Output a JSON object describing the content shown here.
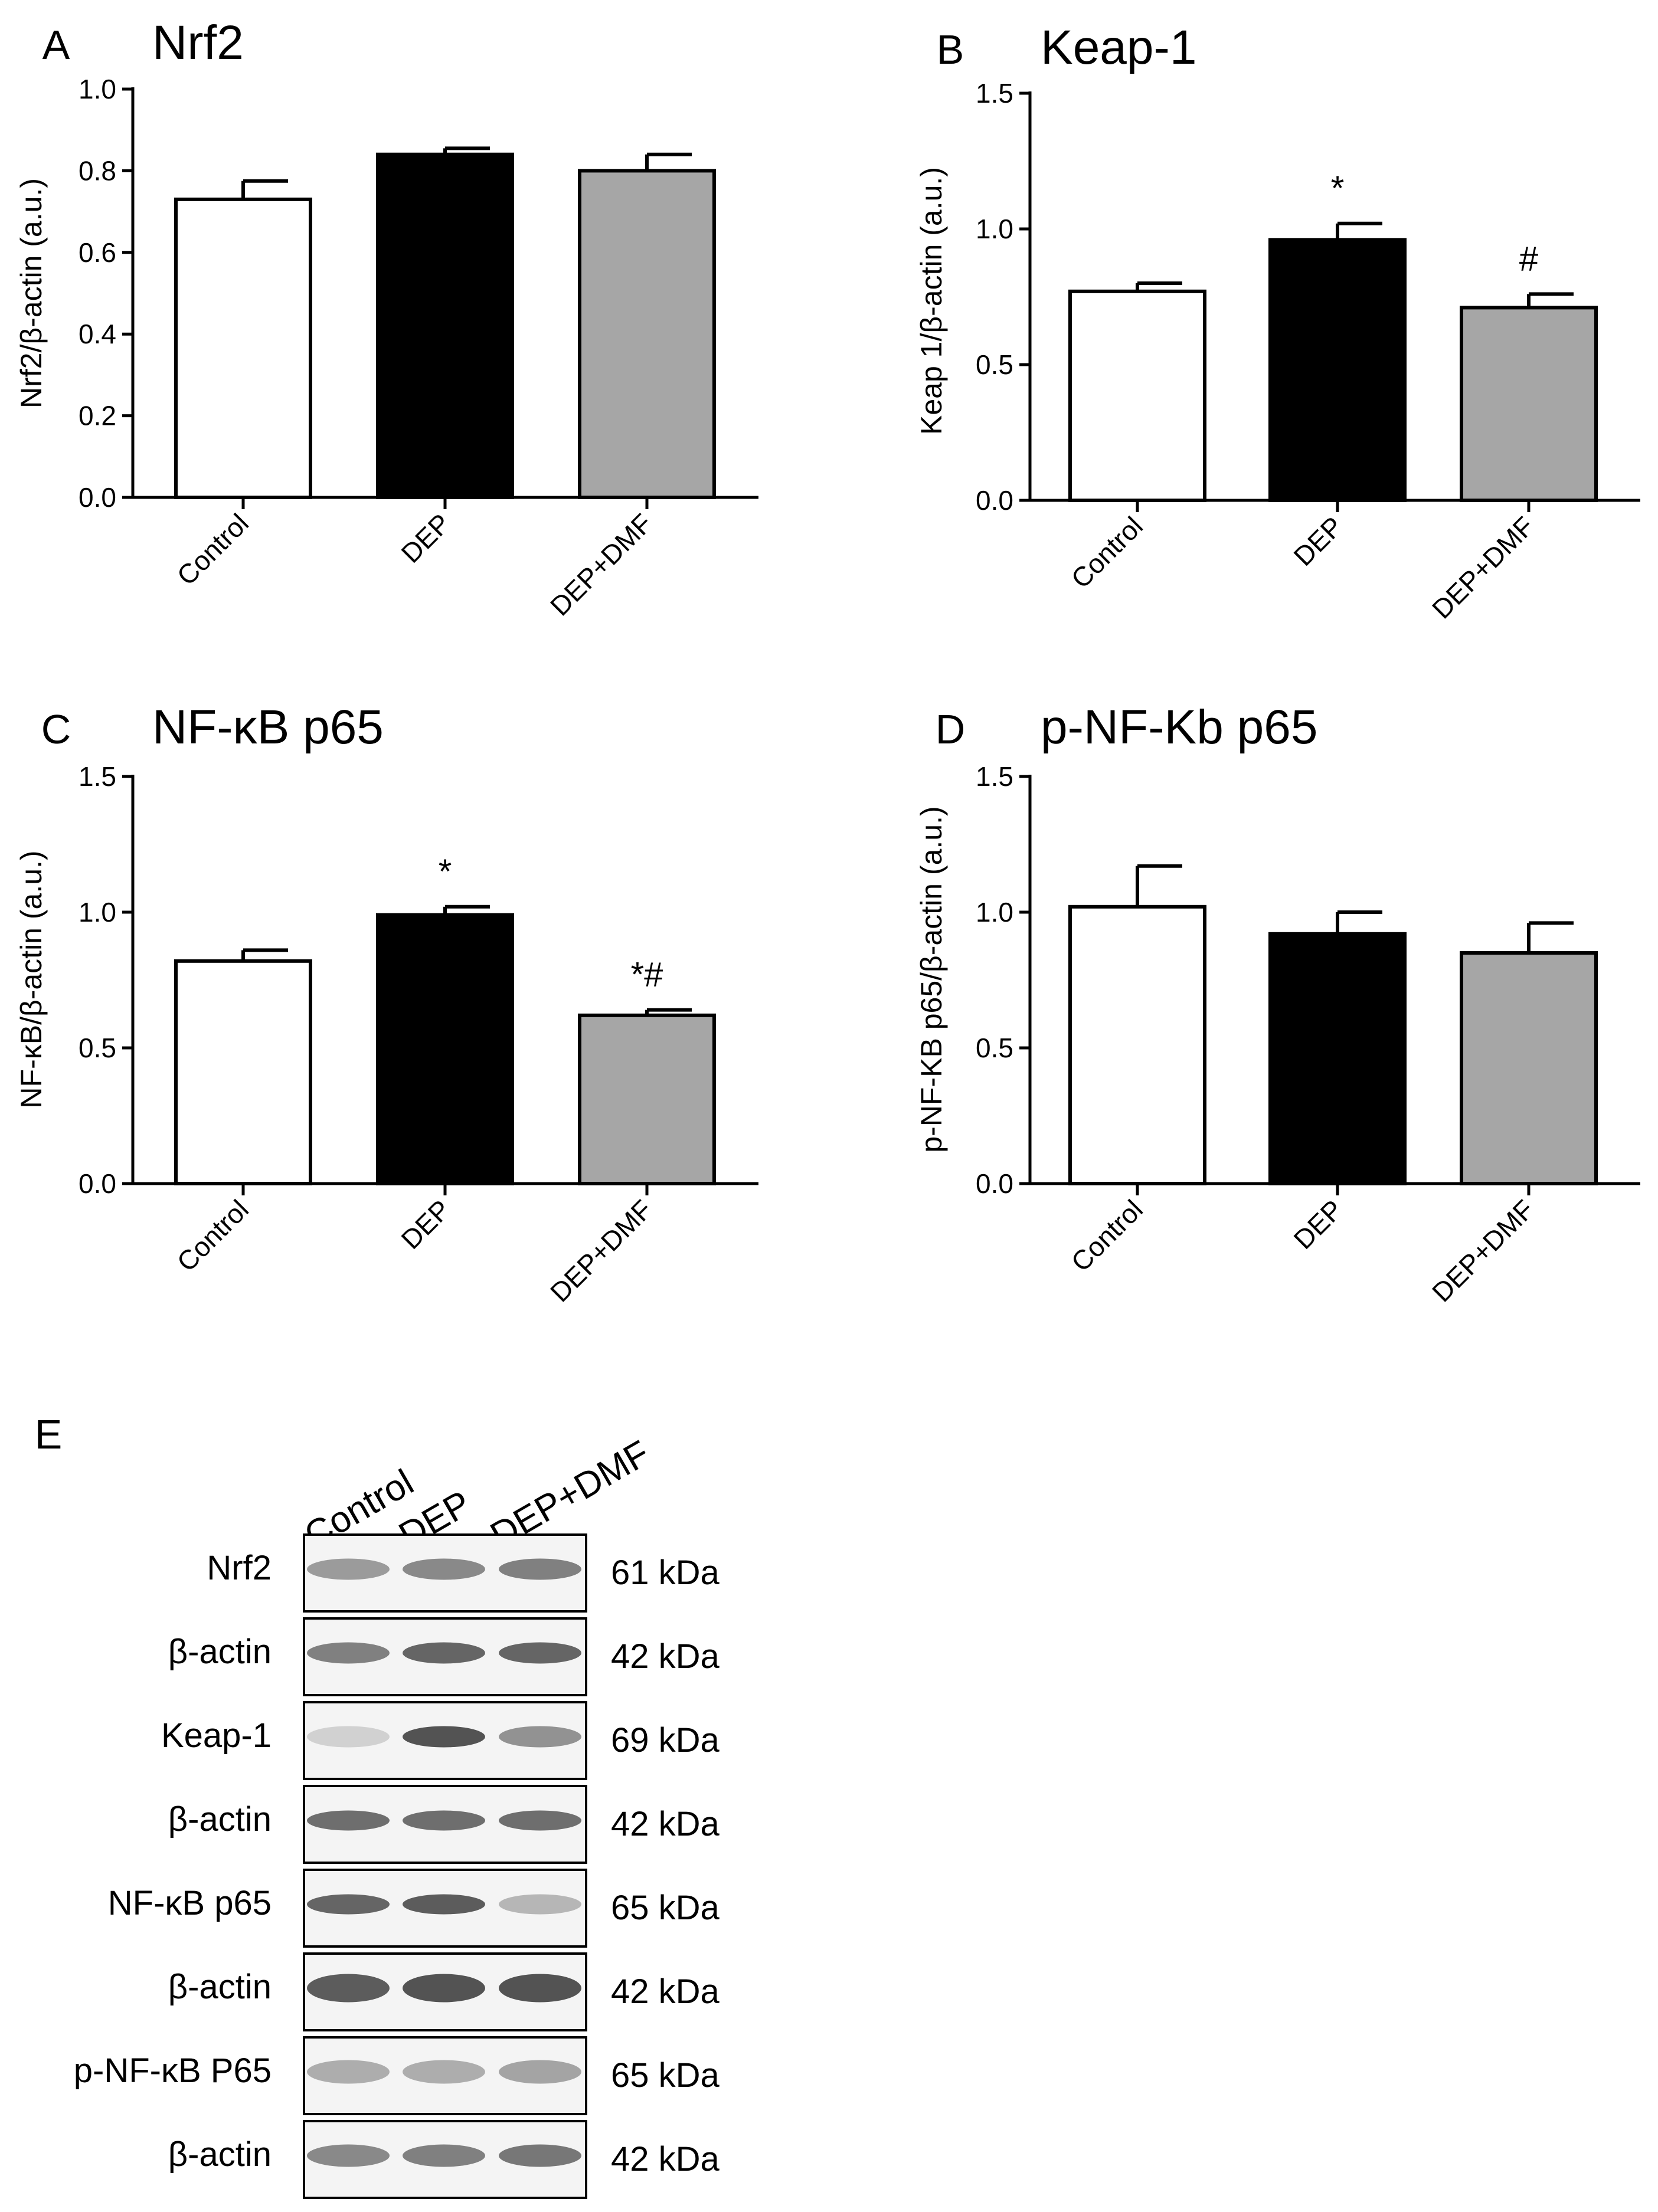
{
  "chart_data": [
    {
      "type": "bar",
      "panel_label": "A",
      "title": "Nrf2",
      "ylabel": "Nrf2/β-actin (a.u.)",
      "xlabel": "",
      "ylim": [
        0,
        1.0
      ],
      "yticks": [
        "0.0",
        "0.2",
        "0.4",
        "0.6",
        "0.8",
        "1.0"
      ],
      "categories": [
        "Control",
        "DEP",
        "DEP+DMF"
      ],
      "values": [
        0.73,
        0.84,
        0.8
      ],
      "errors": [
        0.045,
        0.015,
        0.04
      ],
      "annotations": [
        "",
        "",
        ""
      ],
      "bar_colors": [
        "#ffffff",
        "#000000",
        "#a6a6a6"
      ],
      "legend": "none"
    },
    {
      "type": "bar",
      "panel_label": "B",
      "title": "Keap-1",
      "ylabel": "Keap 1/β-actin (a.u.)",
      "xlabel": "",
      "ylim": [
        0,
        1.5
      ],
      "yticks": [
        "0.0",
        "0.5",
        "1.0",
        "1.5"
      ],
      "categories": [
        "Control",
        "DEP",
        "DEP+DMF"
      ],
      "values": [
        0.77,
        0.96,
        0.71
      ],
      "errors": [
        0.03,
        0.06,
        0.05
      ],
      "annotations": [
        "",
        "*",
        "#"
      ],
      "bar_colors": [
        "#ffffff",
        "#000000",
        "#a6a6a6"
      ],
      "legend": "none"
    },
    {
      "type": "bar",
      "panel_label": "C",
      "title": "NF-κB p65",
      "ylabel": "NF-κB/β-actin (a.u.)",
      "xlabel": "",
      "ylim": [
        0,
        1.5
      ],
      "yticks": [
        "0.0",
        "0.5",
        "1.0",
        "1.5"
      ],
      "categories": [
        "Control",
        "DEP",
        "DEP+DMF"
      ],
      "values": [
        0.82,
        0.99,
        0.62
      ],
      "errors": [
        0.04,
        0.03,
        0.02
      ],
      "annotations": [
        "",
        "*",
        "*#"
      ],
      "bar_colors": [
        "#ffffff",
        "#000000",
        "#a6a6a6"
      ],
      "legend": "none"
    },
    {
      "type": "bar",
      "panel_label": "D",
      "title": "p-NF-Kb p65",
      "ylabel": "p-NF-KB p65/β-actin (a.u.)",
      "xlabel": "",
      "ylim": [
        0,
        1.5
      ],
      "yticks": [
        "0.0",
        "0.5",
        "1.0",
        "1.5"
      ],
      "categories": [
        "Control",
        "DEP",
        "DEP+DMF"
      ],
      "values": [
        1.02,
        0.92,
        0.85
      ],
      "errors": [
        0.15,
        0.08,
        0.11
      ],
      "annotations": [
        "",
        "",
        ""
      ],
      "bar_colors": [
        "#ffffff",
        "#000000",
        "#a6a6a6"
      ],
      "legend": "none"
    }
  ],
  "blot": {
    "panel_label": "E",
    "lanes": [
      "Control",
      "DEP",
      "DEP+DMF"
    ],
    "rows": [
      {
        "label": "Nrf2",
        "kda": "61 kDa",
        "intensity": [
          0.45,
          0.55,
          0.6
        ],
        "thickness": 0.45
      },
      {
        "label": "β-actin",
        "kda": "42 kDa",
        "intensity": [
          0.6,
          0.75,
          0.75
        ],
        "thickness": 0.45
      },
      {
        "label": "Keap-1",
        "kda": "69 kDa",
        "intensity": [
          0.15,
          0.85,
          0.5
        ],
        "thickness": 0.45
      },
      {
        "label": "β-actin",
        "kda": "42 kDa",
        "intensity": [
          0.7,
          0.7,
          0.7
        ],
        "thickness": 0.4
      },
      {
        "label": "NF-κB p65",
        "kda": "65 kDa",
        "intensity": [
          0.75,
          0.8,
          0.3
        ],
        "thickness": 0.4
      },
      {
        "label": "β-actin",
        "kda": "42 kDa",
        "intensity": [
          0.8,
          0.85,
          0.85
        ],
        "thickness": 0.75
      },
      {
        "label": "p-NF-κB P65",
        "kda": "65 kDa",
        "intensity": [
          0.35,
          0.35,
          0.4
        ],
        "thickness": 0.55
      },
      {
        "label": "β-actin",
        "kda": "42 kDa",
        "intensity": [
          0.55,
          0.6,
          0.65
        ],
        "thickness": 0.5
      }
    ]
  }
}
